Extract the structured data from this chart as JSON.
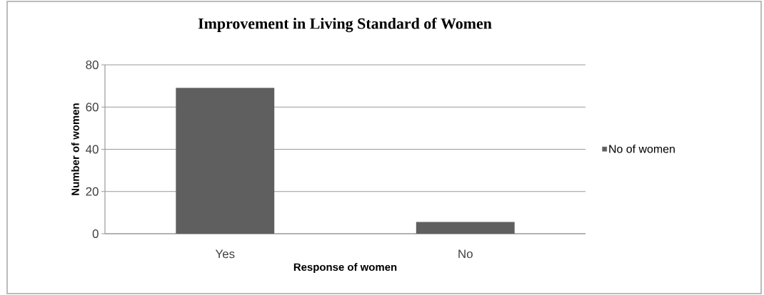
{
  "chart_data": {
    "type": "bar",
    "title": "Improvement in Living Standard of Women",
    "xlabel": "Response of women",
    "ylabel": "Number of women",
    "categories": [
      "Yes",
      "No"
    ],
    "series": [
      {
        "name": "No of women",
        "color": "#5f5f5f",
        "values": [
          69,
          5.5
        ]
      }
    ],
    "ylim": [
      0,
      80
    ],
    "yticks": [
      0,
      20,
      40,
      60,
      80
    ],
    "grid": "y",
    "legend": "right"
  }
}
